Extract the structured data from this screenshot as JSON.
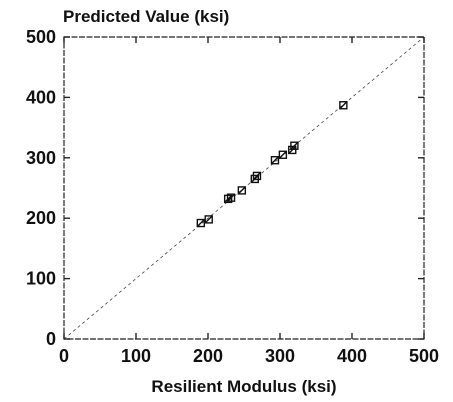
{
  "chart_data": {
    "type": "scatter",
    "title": "",
    "ylabel": "Predicted Value (ksi)",
    "xlabel": "Resilient Modulus (ksi)",
    "xlim": [
      0,
      500
    ],
    "ylim": [
      0,
      500
    ],
    "xticks": [
      "0",
      "100",
      "200",
      "300",
      "400",
      "500"
    ],
    "yticks": [
      "0",
      "100",
      "200",
      "300",
      "400",
      "500"
    ],
    "grid": false,
    "reference_line": {
      "from": [
        0,
        0
      ],
      "to": [
        500,
        500
      ],
      "style": "dotted"
    },
    "series": [
      {
        "marker": "square",
        "points": [
          {
            "x": 190,
            "y": 192
          },
          {
            "x": 201,
            "y": 198
          },
          {
            "x": 228,
            "y": 232
          },
          {
            "x": 232,
            "y": 234
          },
          {
            "x": 247,
            "y": 246
          },
          {
            "x": 265,
            "y": 265
          },
          {
            "x": 268,
            "y": 270
          },
          {
            "x": 293,
            "y": 296
          },
          {
            "x": 304,
            "y": 305
          },
          {
            "x": 317,
            "y": 313
          },
          {
            "x": 320,
            "y": 320
          },
          {
            "x": 388,
            "y": 387
          }
        ]
      }
    ]
  }
}
